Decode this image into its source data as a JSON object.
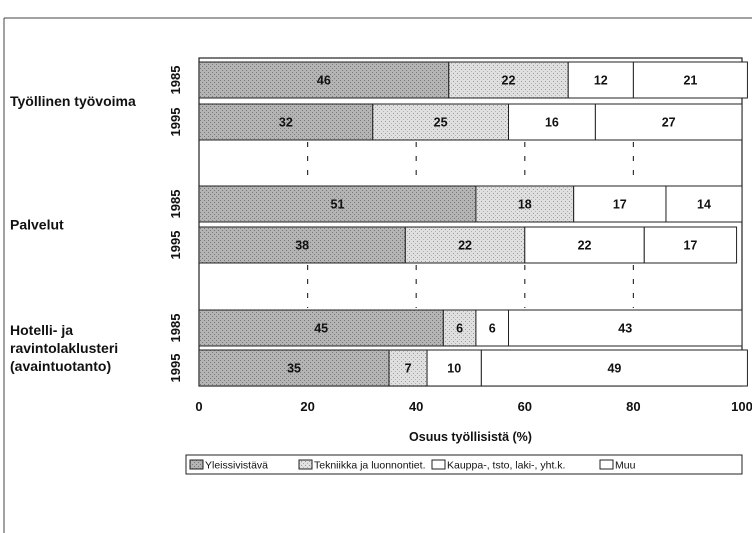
{
  "chart_data": {
    "type": "bar",
    "orientation": "horizontal",
    "stacked": true,
    "groups": [
      {
        "label_lines": [
          "Työllinen työvoima"
        ],
        "bars": [
          {
            "year": "1985",
            "values": [
              46,
              22,
              12,
              21
            ]
          },
          {
            "year": "1995",
            "values": [
              32,
              25,
              16,
              27
            ]
          }
        ]
      },
      {
        "label_lines": [
          "Palvelut"
        ],
        "bars": [
          {
            "year": "1985",
            "values": [
              51,
              18,
              17,
              14
            ]
          },
          {
            "year": "1995",
            "values": [
              38,
              22,
              22,
              17
            ]
          }
        ]
      },
      {
        "label_lines": [
          "Hotelli- ja",
          "ravintolaklusteri",
          "(avaintuotanto)"
        ],
        "bars": [
          {
            "year": "1985",
            "values": [
              45,
              6,
              6,
              43
            ]
          },
          {
            "year": "1995",
            "values": [
              35,
              7,
              10,
              49
            ]
          }
        ]
      }
    ],
    "series": [
      {
        "name": "Yleissivistävä",
        "color": "#a6a6a6"
      },
      {
        "name": "Tekniikka ja luonnontiet.",
        "color": "#d2d2d2"
      },
      {
        "name": "Kauppa-, tsto, laki-, yht.k.",
        "color": "#ffffff"
      },
      {
        "name": "Muu",
        "color": "#ffffff"
      }
    ],
    "xlabel": "Osuus työllisistä (%)",
    "xlim": [
      0,
      100
    ],
    "xticks": [
      0,
      20,
      40,
      60,
      80,
      100
    ],
    "grid": "dashed vertical",
    "legend_position": "bottom"
  }
}
